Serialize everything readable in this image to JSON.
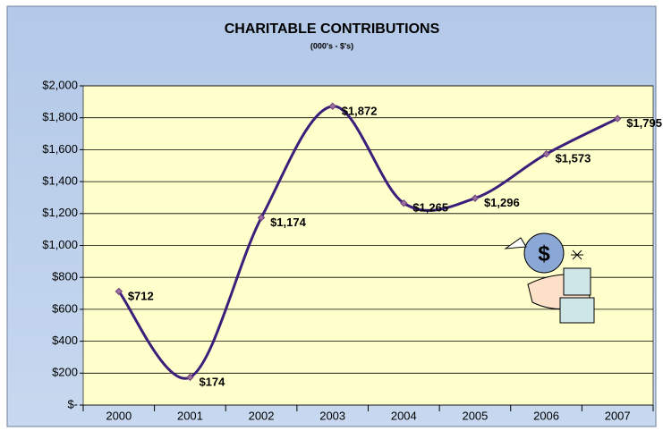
{
  "chart_data": {
    "type": "line",
    "title": "CHARITABLE CONTRIBUTIONS",
    "subtitle": "(000's - $'s)",
    "categories": [
      "2000",
      "2001",
      "2002",
      "2003",
      "2004",
      "2005",
      "2006",
      "2007"
    ],
    "values": [
      712,
      174,
      1174,
      1872,
      1265,
      1296,
      1573,
      1795
    ],
    "value_labels": [
      "$712",
      "$174",
      "$1,174",
      "$1,872",
      "$1,265",
      "$1,296",
      "$1,573",
      "$1,795"
    ],
    "color": "#3c1f7b",
    "smooth": true,
    "grid": true,
    "ylim": [
      0,
      2000
    ],
    "yticks": [
      {
        "value": 0,
        "label": "$-"
      },
      {
        "value": 200,
        "label": "$200"
      },
      {
        "value": 400,
        "label": "$400"
      },
      {
        "value": 600,
        "label": "$600"
      },
      {
        "value": 800,
        "label": "$800"
      },
      {
        "value": 1000,
        "label": "$1,000"
      },
      {
        "value": 1200,
        "label": "$1,200"
      },
      {
        "value": 1400,
        "label": "$1,400"
      },
      {
        "value": 1600,
        "label": "$1,600"
      },
      {
        "value": 1800,
        "label": "$1,800"
      },
      {
        "value": 2000,
        "label": "$2,000"
      }
    ]
  }
}
